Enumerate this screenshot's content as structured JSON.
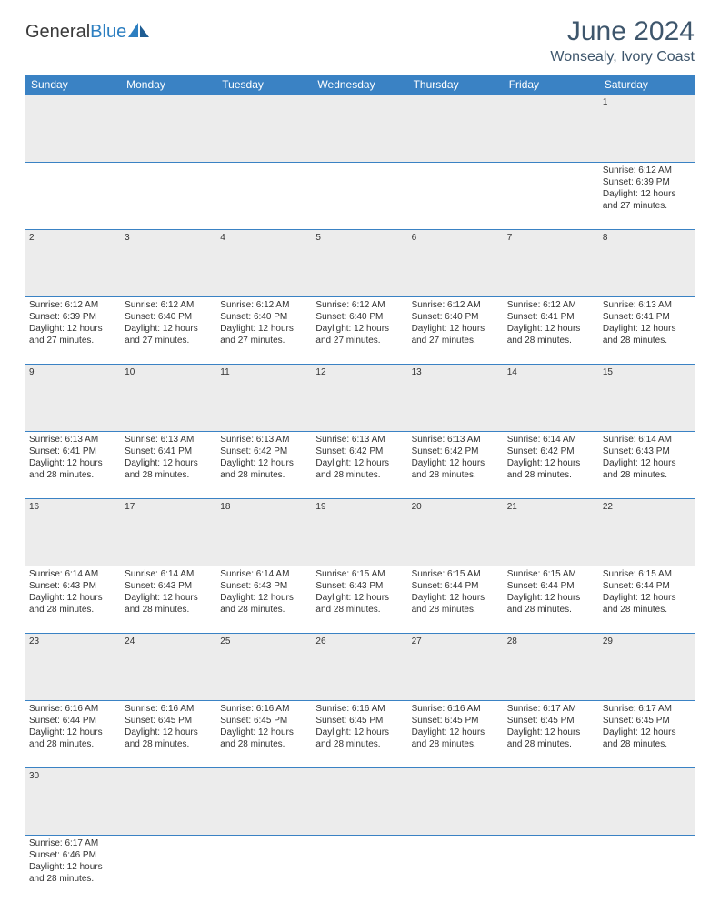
{
  "brand": {
    "part1": "General",
    "part2": "Blue"
  },
  "title": "June 2024",
  "location": "Wonsealy, Ivory Coast",
  "colors": {
    "header_bg": "#3a82c4",
    "header_text": "#ffffff",
    "title_color": "#3e566c",
    "daynum_bg": "#ececec",
    "rule_color": "#3a82c4",
    "brand_blue": "#2d7fc1"
  },
  "weekdays": [
    "Sunday",
    "Monday",
    "Tuesday",
    "Wednesday",
    "Thursday",
    "Friday",
    "Saturday"
  ],
  "first_weekday_index": 6,
  "days": [
    {
      "n": 1,
      "sr": "6:12 AM",
      "ss": "6:39 PM",
      "dl": "12 hours and 27 minutes."
    },
    {
      "n": 2,
      "sr": "6:12 AM",
      "ss": "6:39 PM",
      "dl": "12 hours and 27 minutes."
    },
    {
      "n": 3,
      "sr": "6:12 AM",
      "ss": "6:40 PM",
      "dl": "12 hours and 27 minutes."
    },
    {
      "n": 4,
      "sr": "6:12 AM",
      "ss": "6:40 PM",
      "dl": "12 hours and 27 minutes."
    },
    {
      "n": 5,
      "sr": "6:12 AM",
      "ss": "6:40 PM",
      "dl": "12 hours and 27 minutes."
    },
    {
      "n": 6,
      "sr": "6:12 AM",
      "ss": "6:40 PM",
      "dl": "12 hours and 27 minutes."
    },
    {
      "n": 7,
      "sr": "6:12 AM",
      "ss": "6:41 PM",
      "dl": "12 hours and 28 minutes."
    },
    {
      "n": 8,
      "sr": "6:13 AM",
      "ss": "6:41 PM",
      "dl": "12 hours and 28 minutes."
    },
    {
      "n": 9,
      "sr": "6:13 AM",
      "ss": "6:41 PM",
      "dl": "12 hours and 28 minutes."
    },
    {
      "n": 10,
      "sr": "6:13 AM",
      "ss": "6:41 PM",
      "dl": "12 hours and 28 minutes."
    },
    {
      "n": 11,
      "sr": "6:13 AM",
      "ss": "6:42 PM",
      "dl": "12 hours and 28 minutes."
    },
    {
      "n": 12,
      "sr": "6:13 AM",
      "ss": "6:42 PM",
      "dl": "12 hours and 28 minutes."
    },
    {
      "n": 13,
      "sr": "6:13 AM",
      "ss": "6:42 PM",
      "dl": "12 hours and 28 minutes."
    },
    {
      "n": 14,
      "sr": "6:14 AM",
      "ss": "6:42 PM",
      "dl": "12 hours and 28 minutes."
    },
    {
      "n": 15,
      "sr": "6:14 AM",
      "ss": "6:43 PM",
      "dl": "12 hours and 28 minutes."
    },
    {
      "n": 16,
      "sr": "6:14 AM",
      "ss": "6:43 PM",
      "dl": "12 hours and 28 minutes."
    },
    {
      "n": 17,
      "sr": "6:14 AM",
      "ss": "6:43 PM",
      "dl": "12 hours and 28 minutes."
    },
    {
      "n": 18,
      "sr": "6:14 AM",
      "ss": "6:43 PM",
      "dl": "12 hours and 28 minutes."
    },
    {
      "n": 19,
      "sr": "6:15 AM",
      "ss": "6:43 PM",
      "dl": "12 hours and 28 minutes."
    },
    {
      "n": 20,
      "sr": "6:15 AM",
      "ss": "6:44 PM",
      "dl": "12 hours and 28 minutes."
    },
    {
      "n": 21,
      "sr": "6:15 AM",
      "ss": "6:44 PM",
      "dl": "12 hours and 28 minutes."
    },
    {
      "n": 22,
      "sr": "6:15 AM",
      "ss": "6:44 PM",
      "dl": "12 hours and 28 minutes."
    },
    {
      "n": 23,
      "sr": "6:16 AM",
      "ss": "6:44 PM",
      "dl": "12 hours and 28 minutes."
    },
    {
      "n": 24,
      "sr": "6:16 AM",
      "ss": "6:45 PM",
      "dl": "12 hours and 28 minutes."
    },
    {
      "n": 25,
      "sr": "6:16 AM",
      "ss": "6:45 PM",
      "dl": "12 hours and 28 minutes."
    },
    {
      "n": 26,
      "sr": "6:16 AM",
      "ss": "6:45 PM",
      "dl": "12 hours and 28 minutes."
    },
    {
      "n": 27,
      "sr": "6:16 AM",
      "ss": "6:45 PM",
      "dl": "12 hours and 28 minutes."
    },
    {
      "n": 28,
      "sr": "6:17 AM",
      "ss": "6:45 PM",
      "dl": "12 hours and 28 minutes."
    },
    {
      "n": 29,
      "sr": "6:17 AM",
      "ss": "6:45 PM",
      "dl": "12 hours and 28 minutes."
    },
    {
      "n": 30,
      "sr": "6:17 AM",
      "ss": "6:46 PM",
      "dl": "12 hours and 28 minutes."
    }
  ],
  "labels": {
    "sunrise": "Sunrise:",
    "sunset": "Sunset:",
    "daylight": "Daylight:"
  }
}
